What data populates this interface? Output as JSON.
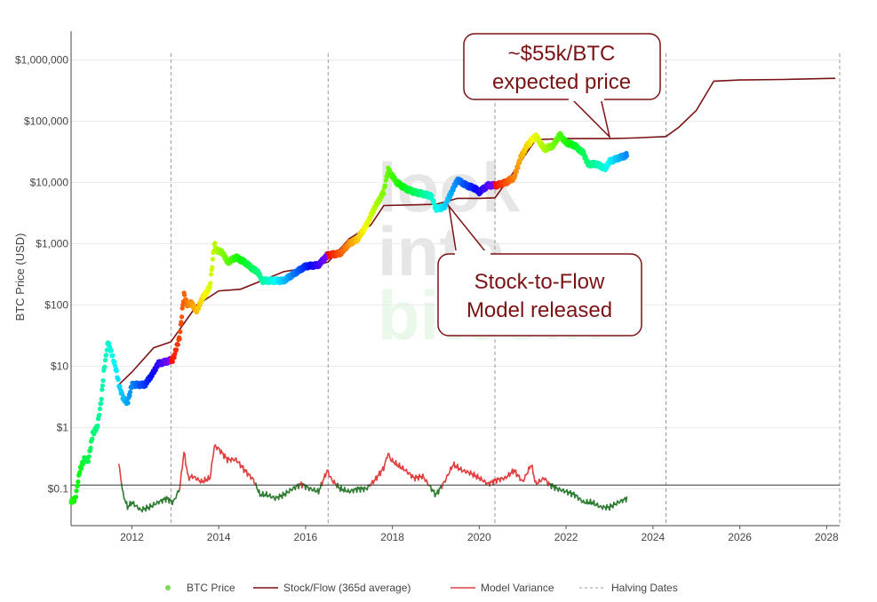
{
  "chart_data": {
    "type": "scatter",
    "title": "",
    "xlabel": "",
    "ylabel": "BTC Price (USD)",
    "y_scale": "log",
    "xlim": [
      2010.6,
      2028.3
    ],
    "ylim": [
      0.025,
      2500000
    ],
    "grid": true,
    "x_ticks": [
      "2012",
      "2014",
      "2016",
      "2018",
      "2020",
      "2022",
      "2024",
      "2026",
      "2028"
    ],
    "x_tick_values": [
      2012,
      2014,
      2016,
      2018,
      2020,
      2022,
      2024,
      2026,
      2028
    ],
    "y_ticks": [
      "$0.1",
      "$1",
      "$10",
      "$100",
      "$1,000",
      "$10,000",
      "$100,000",
      "$1,000,000"
    ],
    "y_tick_values": [
      0.1,
      1,
      10,
      100,
      1000,
      10000,
      100000,
      1000000
    ],
    "reference_line": 0.115,
    "halving_dates": [
      2012.9,
      2016.52,
      2020.36,
      2024.3,
      2028.3
    ],
    "series": [
      {
        "name": "BTC Price",
        "kind": "points",
        "x": [
          2010.6,
          2010.7,
          2010.8,
          2010.9,
          2011.0,
          2011.1,
          2011.2,
          2011.3,
          2011.35,
          2011.45,
          2011.55,
          2011.65,
          2011.7,
          2011.8,
          2011.9,
          2012.0,
          2012.1,
          2012.3,
          2012.5,
          2012.6,
          2012.8,
          2012.95,
          2013.1,
          2013.2,
          2013.27,
          2013.35,
          2013.5,
          2013.6,
          2013.8,
          2013.9,
          2013.95,
          2014.1,
          2014.2,
          2014.4,
          2014.6,
          2014.8,
          2014.9,
          2015.0,
          2015.2,
          2015.5,
          2015.8,
          2016.0,
          2016.3,
          2016.5,
          2016.8,
          2017.0,
          2017.2,
          2017.4,
          2017.6,
          2017.8,
          2017.9,
          2017.96,
          2018.1,
          2018.3,
          2018.5,
          2018.7,
          2018.9,
          2019.0,
          2019.2,
          2019.4,
          2019.5,
          2019.7,
          2019.9,
          2020.0,
          2020.2,
          2020.4,
          2020.6,
          2020.8,
          2020.95,
          2021.1,
          2021.3,
          2021.5,
          2021.7,
          2021.85,
          2022.0,
          2022.2,
          2022.4,
          2022.5,
          2022.7,
          2022.9,
          2023.0,
          2023.2,
          2023.4
        ],
        "y": [
          0.06,
          0.07,
          0.2,
          0.3,
          0.3,
          0.8,
          1,
          3,
          8,
          25,
          15,
          8,
          5,
          3,
          2.5,
          5,
          5,
          5,
          8,
          11,
          12,
          13,
          30,
          150,
          100,
          110,
          80,
          120,
          200,
          1000,
          800,
          700,
          500,
          600,
          500,
          380,
          350,
          250,
          250,
          250,
          350,
          430,
          450,
          650,
          700,
          1000,
          1200,
          2000,
          4000,
          7000,
          16000,
          14000,
          10000,
          8000,
          7000,
          6500,
          6000,
          3700,
          4000,
          8000,
          11000,
          9000,
          8000,
          7000,
          9000,
          9000,
          10000,
          12000,
          25000,
          40000,
          58000,
          35000,
          40000,
          60000,
          45000,
          40000,
          30000,
          20000,
          20000,
          17000,
          22000,
          25000,
          28000
        ]
      },
      {
        "name": "Stock/Flow (365d average)",
        "kind": "line",
        "x": [
          2011.7,
          2012.0,
          2012.5,
          2012.9,
          2013.5,
          2014.0,
          2014.5,
          2015.0,
          2015.5,
          2016.0,
          2016.52,
          2017.0,
          2017.5,
          2017.8,
          2018.5,
          2019.0,
          2019.5,
          2020.0,
          2020.36,
          2020.8,
          2021.3,
          2022.0,
          2022.5,
          2023.0,
          2023.5,
          2024.3,
          2024.6,
          2025.0,
          2025.4,
          2026.0,
          2027.0,
          2028.2
        ],
        "y": [
          5,
          8,
          20,
          25,
          100,
          170,
          180,
          250,
          350,
          400,
          500,
          1200,
          2000,
          4200,
          4300,
          4400,
          5500,
          5500,
          5600,
          15000,
          50000,
          52000,
          52000,
          52000,
          53000,
          56000,
          80000,
          150000,
          450000,
          470000,
          480000,
          500000
        ]
      },
      {
        "name": "Model Variance",
        "kind": "line",
        "x": [
          2011.7,
          2011.8,
          2011.9,
          2012.0,
          2012.2,
          2012.4,
          2012.6,
          2012.8,
          2012.95,
          2013.1,
          2013.2,
          2013.3,
          2013.4,
          2013.6,
          2013.8,
          2013.9,
          2014.0,
          2014.2,
          2014.4,
          2014.6,
          2014.8,
          2014.95,
          2015.1,
          2015.3,
          2015.5,
          2015.7,
          2015.9,
          2016.1,
          2016.3,
          2016.5,
          2016.6,
          2016.8,
          2017.0,
          2017.2,
          2017.4,
          2017.6,
          2017.8,
          2017.9,
          2017.96,
          2018.1,
          2018.3,
          2018.5,
          2018.7,
          2018.9,
          2019.0,
          2019.2,
          2019.4,
          2019.6,
          2019.8,
          2020.0,
          2020.2,
          2020.4,
          2020.6,
          2020.8,
          2021.0,
          2021.2,
          2021.3,
          2021.5,
          2021.6,
          2021.8,
          2022.0,
          2022.2,
          2022.4,
          2022.6,
          2022.8,
          2023.0,
          2023.2,
          2023.4
        ],
        "y": [
          0.25,
          0.08,
          0.05,
          0.06,
          0.045,
          0.05,
          0.06,
          0.07,
          0.06,
          0.1,
          0.4,
          0.15,
          0.16,
          0.13,
          0.15,
          0.5,
          0.45,
          0.3,
          0.3,
          0.2,
          0.14,
          0.08,
          0.08,
          0.07,
          0.08,
          0.1,
          0.12,
          0.1,
          0.09,
          0.2,
          0.14,
          0.1,
          0.09,
          0.1,
          0.1,
          0.14,
          0.22,
          0.38,
          0.3,
          0.25,
          0.2,
          0.15,
          0.16,
          0.1,
          0.08,
          0.13,
          0.25,
          0.2,
          0.18,
          0.15,
          0.12,
          0.14,
          0.15,
          0.2,
          0.13,
          0.25,
          0.12,
          0.15,
          0.12,
          0.1,
          0.09,
          0.08,
          0.06,
          0.06,
          0.05,
          0.05,
          0.06,
          0.07
        ]
      },
      {
        "name": "Halving Dates",
        "kind": "vertical-dashed"
      }
    ],
    "annotations": [
      {
        "lines": [
          "~$55k/BTC",
          "expected price"
        ],
        "target_x": 2023.0,
        "target_y": 52000
      },
      {
        "lines": [
          "Stock-to-Flow",
          "Model released"
        ],
        "target_x": 2019.3,
        "target_y": 5000
      }
    ],
    "legend_placement": "bottom-center",
    "watermark": [
      "look",
      "into",
      "bitcoin"
    ]
  },
  "colors": {
    "stock_flow": "#7b1315",
    "variance_high": "#e04040",
    "variance_low": "#2e7d32",
    "reference_line": "#333333",
    "grid": "#ebebeb",
    "halving": "#999999",
    "legend_dot": "#7ed957"
  }
}
